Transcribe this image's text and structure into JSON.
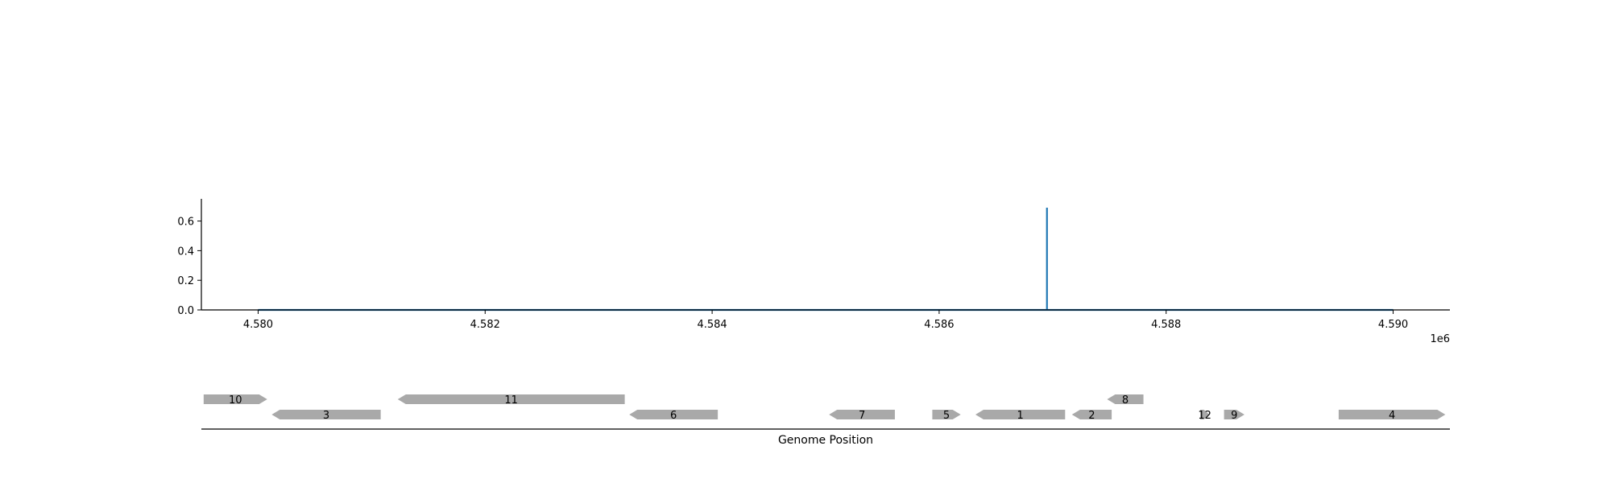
{
  "chart_data": {
    "type": "line",
    "title": "",
    "xlabel": "Genome Position",
    "ylabel": "",
    "x_offset_label": "1e6",
    "xlim": [
      4.5795,
      4.5905
    ],
    "ylim": [
      0.0,
      0.75
    ],
    "x_ticks": [
      4.58,
      4.582,
      4.584,
      4.586,
      4.588,
      4.59
    ],
    "x_tick_labels": [
      "4.580",
      "4.582",
      "4.584",
      "4.586",
      "4.588",
      "4.590"
    ],
    "y_ticks": [
      0.0,
      0.2,
      0.4,
      0.6
    ],
    "y_tick_labels": [
      "0.0",
      "0.2",
      "0.4",
      "0.6"
    ],
    "grid": false,
    "series": [
      {
        "color": "#1f77b4",
        "x": [
          4.58,
          4.58695,
          4.58695,
          4.58695,
          4.59
        ],
        "y": [
          0.0,
          0.0,
          0.69,
          0.0,
          0.0
        ]
      }
    ],
    "genes": [
      {
        "label": "10",
        "start": 4.57952,
        "end": 4.58008,
        "strand": "+",
        "row": 1
      },
      {
        "label": "3",
        "start": 4.58012,
        "end": 4.58108,
        "strand": "-",
        "row": 0
      },
      {
        "label": "11",
        "start": 4.58123,
        "end": 4.58323,
        "strand": "-",
        "row": 1
      },
      {
        "label": "6",
        "start": 4.58327,
        "end": 4.58405,
        "strand": "-",
        "row": 0
      },
      {
        "label": "7",
        "start": 4.58503,
        "end": 4.58561,
        "strand": "-",
        "row": 0
      },
      {
        "label": "5",
        "start": 4.58594,
        "end": 4.58619,
        "strand": "+",
        "row": 0
      },
      {
        "label": "1",
        "start": 4.58632,
        "end": 4.58711,
        "strand": "-",
        "row": 0
      },
      {
        "label": "2",
        "start": 4.58717,
        "end": 4.58752,
        "strand": "-",
        "row": 0
      },
      {
        "label": "8",
        "start": 4.58748,
        "end": 4.5878,
        "strand": "-",
        "row": 1
      },
      {
        "label": "12",
        "start": 4.5883,
        "end": 4.58838,
        "strand": "+",
        "row": 0
      },
      {
        "label": "9",
        "start": 4.58851,
        "end": 4.58869,
        "strand": "+",
        "row": 0
      },
      {
        "label": "4",
        "start": 4.58952,
        "end": 4.59046,
        "strand": "+",
        "row": 0
      }
    ],
    "gene_color": "#a9a9a9"
  }
}
